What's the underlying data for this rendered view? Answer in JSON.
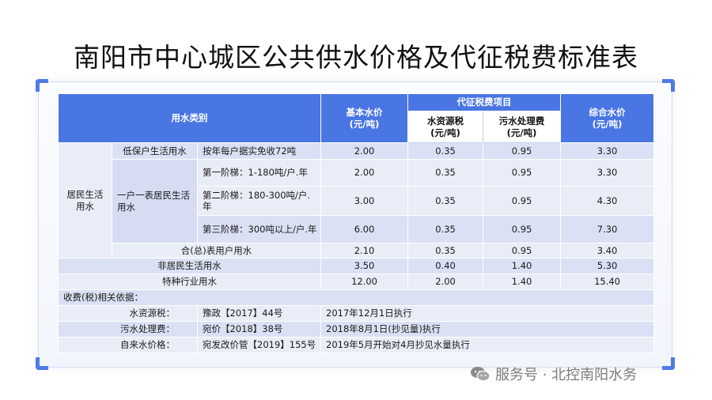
{
  "title": "南阳市中心城区公共供水价格及代征税费标准表",
  "header": {
    "category": "用水类别",
    "base_price": "基本水价(元/吨)",
    "tax_items": "代征税费项目",
    "water_resource_tax": "水资源税(元/吨)",
    "sewage_fee": "污水处理费(元/吨)",
    "total_price": "综合水价(元/吨)"
  },
  "rows": {
    "residential_label": "居民生活用水",
    "low_income": {
      "label": "低保户生活用水",
      "desc": "按年每户据实免收72吨",
      "base": "2.00",
      "tax": "0.35",
      "sewage": "0.95",
      "total": "3.30"
    },
    "one_meter_label": "一户一表居民生活用水",
    "tier1": {
      "desc": "第一阶梯：1-180吨/户.年",
      "base": "2.00",
      "tax": "0.35",
      "sewage": "0.95",
      "total": "3.30"
    },
    "tier2": {
      "desc": "第二阶梯：180-300吨/户.年",
      "base": "3.00",
      "tax": "0.35",
      "sewage": "0.95",
      "total": "4.30"
    },
    "tier3": {
      "desc": "第三阶梯：300吨以上/户.年",
      "base": "6.00",
      "tax": "0.35",
      "sewage": "0.95",
      "total": "7.30"
    },
    "shared": {
      "label": "合(总)表用户用水",
      "base": "2.10",
      "tax": "0.35",
      "sewage": "0.95",
      "total": "3.40"
    },
    "non_residential": {
      "label": "非居民生活用水",
      "base": "3.50",
      "tax": "0.40",
      "sewage": "1.40",
      "total": "5.30"
    },
    "special": {
      "label": "特种行业用水",
      "base": "12.00",
      "tax": "2.00",
      "sewage": "1.40",
      "total": "15.40"
    }
  },
  "basis": {
    "heading": "收费(税)相关依据：",
    "items": [
      {
        "label": "水资源税：",
        "doc": "豫政【2017】44号",
        "note": "2017年12月1日执行"
      },
      {
        "label": "污水处理费：",
        "doc": "宛价【2018】38号",
        "note": "2018年8月1日(抄见量)执行"
      },
      {
        "label": "自来水价格：",
        "doc": "宛发改价管【2019】155号",
        "note": "2019年5月开始对4月抄见水量执行"
      }
    ]
  },
  "watermark": {
    "text": "服务号 · 北控南阳水务",
    "icon": "wechat-icon"
  }
}
